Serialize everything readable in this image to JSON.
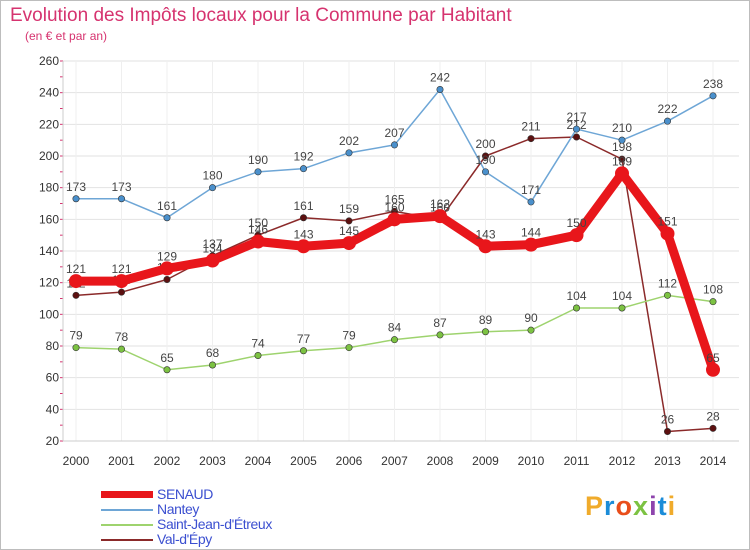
{
  "title": "Evolution des Impôts locaux pour la Commune par Habitant",
  "subtitle": "(en € et par an)",
  "logo": {
    "text": "Proxiti",
    "letter_colors": [
      "#f0ab2b",
      "#1b8cd8",
      "#e94e1b",
      "#7cc242",
      "#8e44ad",
      "#1b8cd8",
      "#f0ab2b"
    ]
  },
  "chart_data": {
    "type": "line",
    "title": "Evolution des Impôts locaux pour la Commune par Habitant",
    "subtitle": "(en € et par an)",
    "xlabel": "",
    "ylabel": "",
    "categories": [
      "2000",
      "2001",
      "2002",
      "2003",
      "2004",
      "2005",
      "2006",
      "2007",
      "2008",
      "2009",
      "2010",
      "2011",
      "2012",
      "2013",
      "2014"
    ],
    "ylim": [
      20,
      260
    ],
    "yticks": [
      20,
      40,
      60,
      80,
      100,
      120,
      140,
      160,
      180,
      200,
      220,
      240,
      260
    ],
    "grid": true,
    "legend_position": "bottom-left",
    "series": [
      {
        "name": "Val-d'Épy",
        "color": "#8b2a2a",
        "marker_color": "#5c1010",
        "width": "thin",
        "values": [
          112,
          114,
          122,
          137,
          150,
          161,
          159,
          165,
          160,
          200,
          211,
          212,
          198,
          26,
          28
        ],
        "labels": [
          "112",
          "114",
          "122",
          "137",
          "150",
          "161",
          "159",
          "165",
          "160",
          "200",
          "211",
          "212",
          "198",
          "26",
          "28"
        ]
      },
      {
        "name": "Saint-Jean-d'Étreux",
        "color": "#9ed36e",
        "marker_color": "#7cc242",
        "width": "thin",
        "values": [
          79,
          78,
          65,
          68,
          74,
          77,
          79,
          84,
          87,
          89,
          90,
          104,
          104,
          112,
          108
        ],
        "labels": [
          "79",
          "78",
          "65",
          "68",
          "74",
          "77",
          "79",
          "84",
          "87",
          "89",
          "90",
          "104",
          "104",
          "112",
          "108"
        ]
      },
      {
        "name": "Nantey",
        "color": "#6ea6d6",
        "marker_color": "#4a90cc",
        "width": "thin",
        "values": [
          173,
          173,
          161,
          180,
          190,
          192,
          202,
          207,
          242,
          190,
          171,
          217,
          210,
          222,
          238
        ],
        "labels": [
          "173",
          "173",
          "161",
          "180",
          "190",
          "192",
          "202",
          "207",
          "242",
          "190",
          "171",
          "217",
          "210",
          "222",
          "238"
        ]
      },
      {
        "name": "SENAUD",
        "color": "#e8161b",
        "marker_color": "#e8161b",
        "width": "thick",
        "values": [
          121,
          121,
          129,
          134,
          146,
          143,
          145,
          160,
          162,
          143,
          144,
          150,
          189,
          151,
          65
        ],
        "labels": [
          "121",
          "121",
          "129",
          "134",
          "146",
          "143",
          "145",
          "160",
          "162",
          "143",
          "144",
          "150",
          "189",
          "151",
          "65"
        ]
      }
    ],
    "legend": [
      "SENAUD",
      "Nantey",
      "Saint-Jean-d'Étreux",
      "Val-d'Épy"
    ]
  }
}
